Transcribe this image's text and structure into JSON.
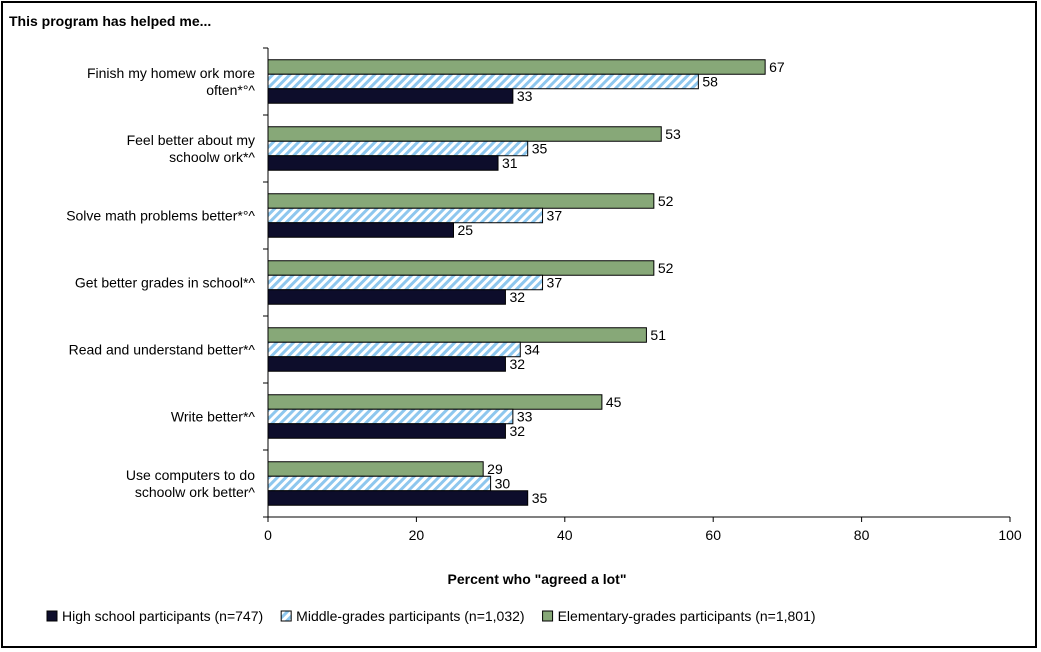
{
  "chart_data": {
    "type": "bar",
    "orientation": "horizontal",
    "title": "This program has helped me...",
    "xlabel": "Percent who \"agreed a lot\"",
    "ylabel": "",
    "xlim": [
      0,
      100
    ],
    "xticks": [
      "0",
      "20",
      "40",
      "60",
      "80",
      "100"
    ],
    "grid": false,
    "legend_position": "bottom",
    "categories": [
      [
        "Finish my homew ork more",
        "often*°^"
      ],
      [
        "Feel better about my",
        "schoolw ork*^"
      ],
      [
        "Solve math problems better*°^"
      ],
      [
        "Get better grades in school*^"
      ],
      [
        "Read and understand better*^"
      ],
      [
        "Write better*^"
      ],
      [
        "Use computers to do",
        "schoolw ork better^"
      ]
    ],
    "series": [
      {
        "name": "Elementary-grades participants (n=1,801)",
        "color": "#87a878",
        "pattern": "solid",
        "values": [
          67,
          53,
          52,
          52,
          51,
          45,
          29
        ],
        "labels": [
          "67",
          "53",
          "52",
          "52",
          "51",
          "45",
          "29"
        ]
      },
      {
        "name": "Middle-grades participants (n=1,032)",
        "color": "#a8d4f0",
        "pattern": "diagonal-stripes",
        "values": [
          58,
          35,
          37,
          37,
          34,
          33,
          30
        ],
        "labels": [
          "58",
          "35",
          "37",
          "37",
          "34",
          "33",
          "30"
        ]
      },
      {
        "name": "High school participants (n=747)",
        "color": "#0d0d2b",
        "pattern": "solid",
        "values": [
          33,
          31,
          25,
          32,
          32,
          32,
          35
        ],
        "labels": [
          "33",
          "31",
          "25",
          "32",
          "32",
          "32",
          "35"
        ]
      }
    ],
    "legend_order": [
      2,
      1,
      0
    ]
  }
}
